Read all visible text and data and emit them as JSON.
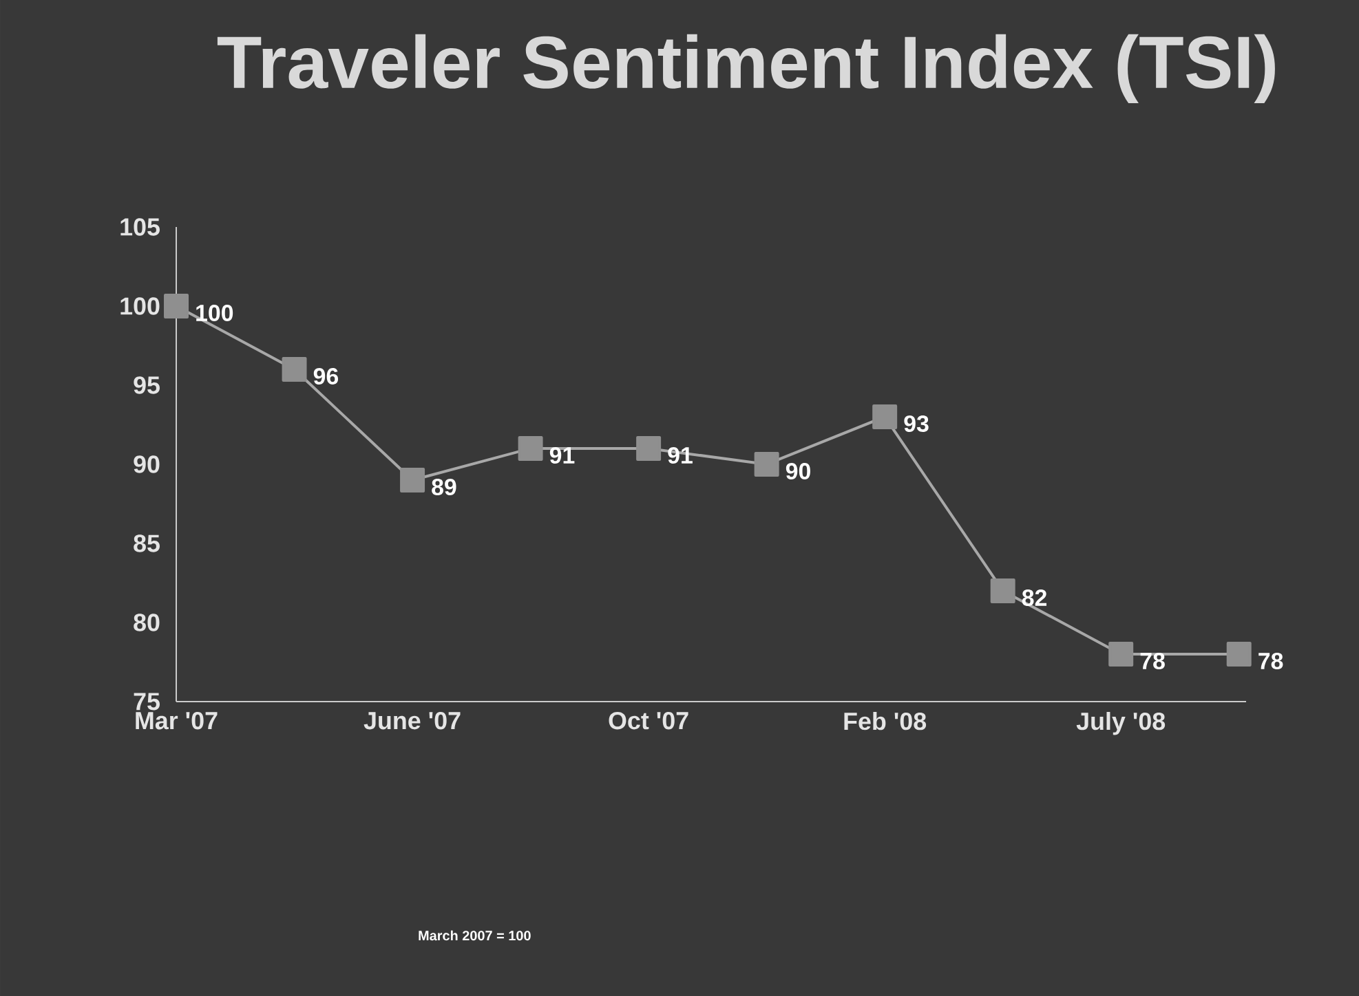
{
  "chart_data": {
    "type": "line",
    "title": "Traveler Sentiment Index (TSI)",
    "categories": [
      "Mar '07",
      null,
      "June '07",
      null,
      "Oct '07",
      null,
      "Feb '08",
      null,
      "July '08",
      null
    ],
    "values": [
      100,
      96,
      89,
      91,
      91,
      90,
      93,
      82,
      78,
      78
    ],
    "color": "#a8a8a8",
    "marker": "square",
    "line_style": "solid",
    "data_labels": true,
    "ylim": [
      75,
      105
    ],
    "yticks": [
      75,
      80,
      85,
      90,
      95,
      100,
      105
    ],
    "grid": false,
    "annotations": [
      "March 2007 = 100"
    ]
  }
}
